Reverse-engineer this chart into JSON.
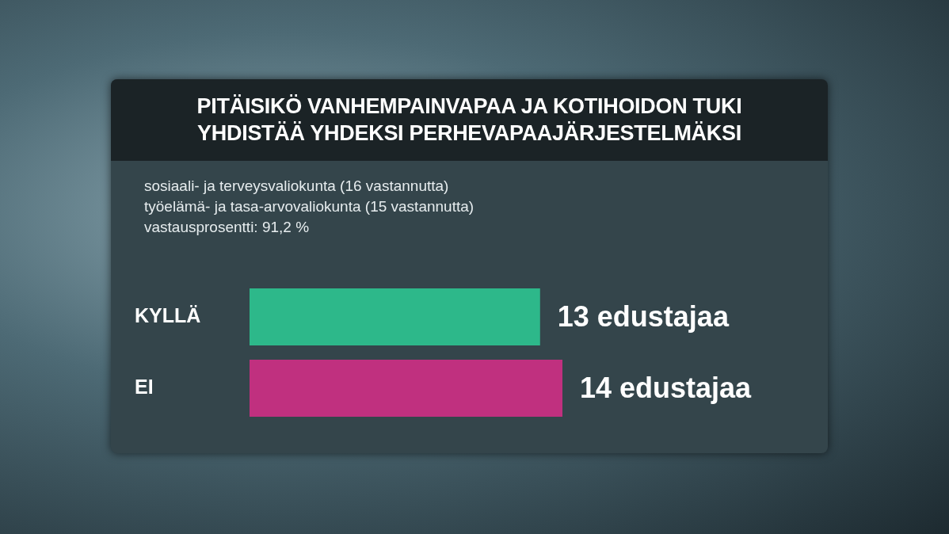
{
  "chart_data": {
    "type": "bar",
    "orientation": "horizontal",
    "title": "PITÄISIKÖ VANHEMPAINVAPAA JA KOTIHOIDON TUKI\nYHDISTÄÄ YHDEKSI PERHEVAPAAJÄRJESTELMÄKSI",
    "subtitle": "sosiaali- ja terveysvaliokunta (16 vastannutta)\ntyöelämä- ja tasa-arvovaliokunta (15 vastannutta)\nvastausprosentti: 91,2 %",
    "categories": [
      "KYLLÄ",
      "EI"
    ],
    "values": [
      13,
      14
    ],
    "colors": [
      "#2db88a",
      "#c0307f"
    ],
    "value_labels": [
      "13 edustajaa",
      "14 edustajaa"
    ]
  }
}
